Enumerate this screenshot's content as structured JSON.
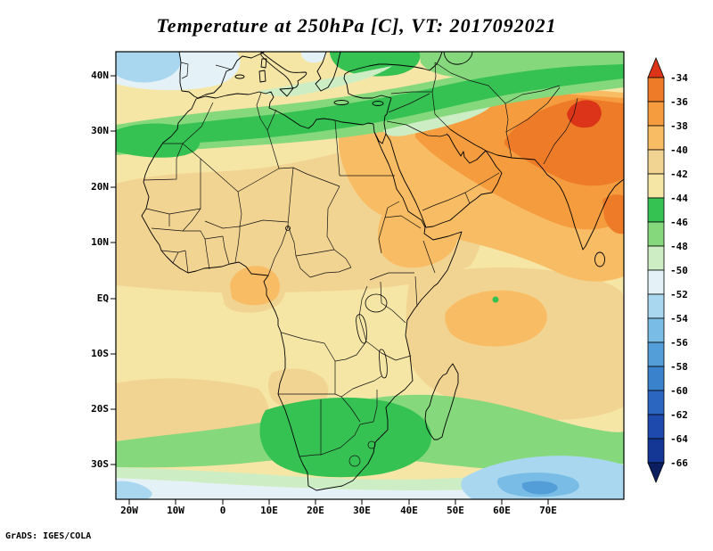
{
  "title": "Temperature at 250hPa [C], VT: 2017092021",
  "credit": "GrADS: IGES/COLA",
  "axes": {
    "lat_labels": [
      "40N",
      "30N",
      "20N",
      "10N",
      "EQ",
      "10S",
      "20S",
      "30S"
    ],
    "lon_labels": [
      "20W",
      "10W",
      "0",
      "10E",
      "20E",
      "30E",
      "40E",
      "50E",
      "60E",
      "70E"
    ]
  },
  "colorbar": {
    "labels": [
      "-34",
      "-36",
      "-38",
      "-40",
      "-42",
      "-44",
      "-46",
      "-48",
      "-50",
      "-52",
      "-54",
      "-56",
      "-58",
      "-60",
      "-62",
      "-64",
      "-66"
    ],
    "arrow_top_color": "#dc3418",
    "arrow_bottom_color": "#0b1f60",
    "cell_colors": [
      "#ee7b28",
      "#f59c3e",
      "#f8bc64",
      "#f2d492",
      "#f5e6a6",
      "#35c253",
      "#85d87c",
      "#cdeec5",
      "#e4f2f8",
      "#a9d7ef",
      "#79bde6",
      "#539dd8",
      "#3b82cc",
      "#2b66c0",
      "#1e4aae",
      "#143694"
    ]
  },
  "chart_data": {
    "type": "heatmap",
    "subtype": "filled-contour-weather-map",
    "title": "Temperature at 250hPa [C], VT: 2017092021",
    "variable": "Temperature",
    "level": "250hPa",
    "units": "C",
    "valid_time": "2017092021",
    "region": "Africa, Mediterranean, Middle East, western Indian Ocean",
    "lon_ticks": [
      "20W",
      "10W",
      "0",
      "10E",
      "20E",
      "30E",
      "40E",
      "50E",
      "60E",
      "70E"
    ],
    "lat_ticks": [
      "40N",
      "30N",
      "20N",
      "10N",
      "EQ",
      "10S",
      "20S",
      "30S"
    ],
    "contour_interval": 2,
    "contour_levels": [
      -66,
      -64,
      -62,
      -60,
      -58,
      -56,
      -54,
      -52,
      -50,
      -48,
      -46,
      -44,
      -42,
      -40,
      -38,
      -36,
      -34
    ],
    "legend_position": "right",
    "notable_features": [
      "Warm maximum of -34 to -38 C over the Middle East, Iran, Pakistan and northwest India",
      "Secondary warm patch near -38 C over the Gulf of Guinea coast",
      "Cold band of -44 to -50 C across the Mediterranean and north Africa near 30-35N",
      "Cold band of -44 to -50 C across southern Africa near 20-30S",
      "Coldest air below -50 C along the far northern and southern edges of the map",
      "Background values of -40 to -44 C over most of tropical Africa"
    ]
  }
}
